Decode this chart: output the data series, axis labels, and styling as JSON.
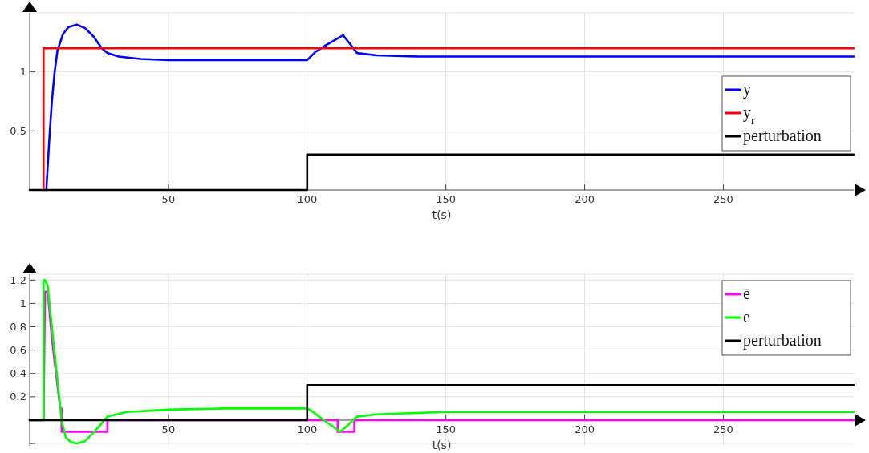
{
  "chart_data": [
    {
      "type": "line",
      "xlabel": "t(s)",
      "xlim": [
        0,
        297
      ],
      "ylim": [
        0,
        1.5
      ],
      "xticks": [
        50,
        100,
        150,
        200,
        250
      ],
      "yticks": [
        0.5,
        1
      ],
      "grid": true,
      "legend": "right",
      "series": [
        {
          "name": "y",
          "color": "#0000ff",
          "x": [
            6,
            7,
            8,
            9,
            10,
            12,
            14,
            17,
            20,
            23,
            26,
            28,
            32,
            40,
            50,
            60,
            80,
            100,
            103,
            107,
            110,
            113,
            118,
            125,
            140,
            160,
            200,
            297
          ],
          "values": [
            0,
            0.4,
            0.75,
            1.0,
            1.18,
            1.32,
            1.38,
            1.4,
            1.37,
            1.3,
            1.2,
            1.16,
            1.13,
            1.11,
            1.1,
            1.1,
            1.1,
            1.1,
            1.17,
            1.23,
            1.27,
            1.31,
            1.16,
            1.14,
            1.13,
            1.13,
            1.13,
            1.13
          ]
        },
        {
          "name": "y$_{r}$",
          "color": "#ff0000",
          "x": [
            5,
            5,
            297
          ],
          "values": [
            0,
            1.2,
            1.2
          ]
        },
        {
          "name": "perturbation",
          "color": "#000000",
          "x": [
            0,
            100,
            100,
            297
          ],
          "values": [
            0,
            0,
            0.3,
            0.3
          ]
        }
      ]
    },
    {
      "type": "line",
      "xlabel": "t(s)",
      "xlim": [
        0,
        297
      ],
      "ylim": [
        -0.22,
        1.25
      ],
      "xticks": [
        50,
        100,
        150,
        200,
        250
      ],
      "yticks": [
        {
          "value": -0.2,
          "label": null
        },
        0.2,
        0.4,
        0.6,
        0.8,
        1,
        1.2
      ],
      "grid": true,
      "legend": "top right",
      "series": [
        {
          "name": "ē",
          "color": "#ff00ff",
          "x": [
            0,
            5,
            5.5,
            6.5,
            8,
            9.5,
            11,
            11.5,
            11.5,
            28,
            28,
            111,
            111,
            117,
            117,
            297
          ],
          "values": [
            0,
            0,
            1.1,
            1.1,
            0.7,
            0.4,
            0.1,
            0.1,
            -0.1,
            -0.1,
            0,
            0,
            -0.1,
            -0.1,
            0,
            0
          ]
        },
        {
          "name": "e",
          "color": "#00ff00",
          "x": [
            0,
            5,
            5,
            5.5,
            6.5,
            8,
            10,
            11.5,
            13,
            15,
            17,
            20,
            24,
            28,
            35,
            50,
            70,
            100,
            101,
            106,
            112,
            118,
            125,
            150,
            200,
            297
          ],
          "values": [
            0,
            0,
            1.2,
            1.2,
            1.15,
            0.8,
            0.35,
            0.0,
            -0.15,
            -0.19,
            -0.2,
            -0.18,
            -0.08,
            0.03,
            0.07,
            0.09,
            0.1,
            0.1,
            0.09,
            0.0,
            -0.1,
            0.03,
            0.05,
            0.07,
            0.07,
            0.07
          ]
        },
        {
          "name": "perturbation",
          "color": "#000000",
          "x": [
            0,
            100,
            100,
            297
          ],
          "values": [
            0,
            0,
            0.3,
            0.3
          ]
        }
      ]
    }
  ]
}
